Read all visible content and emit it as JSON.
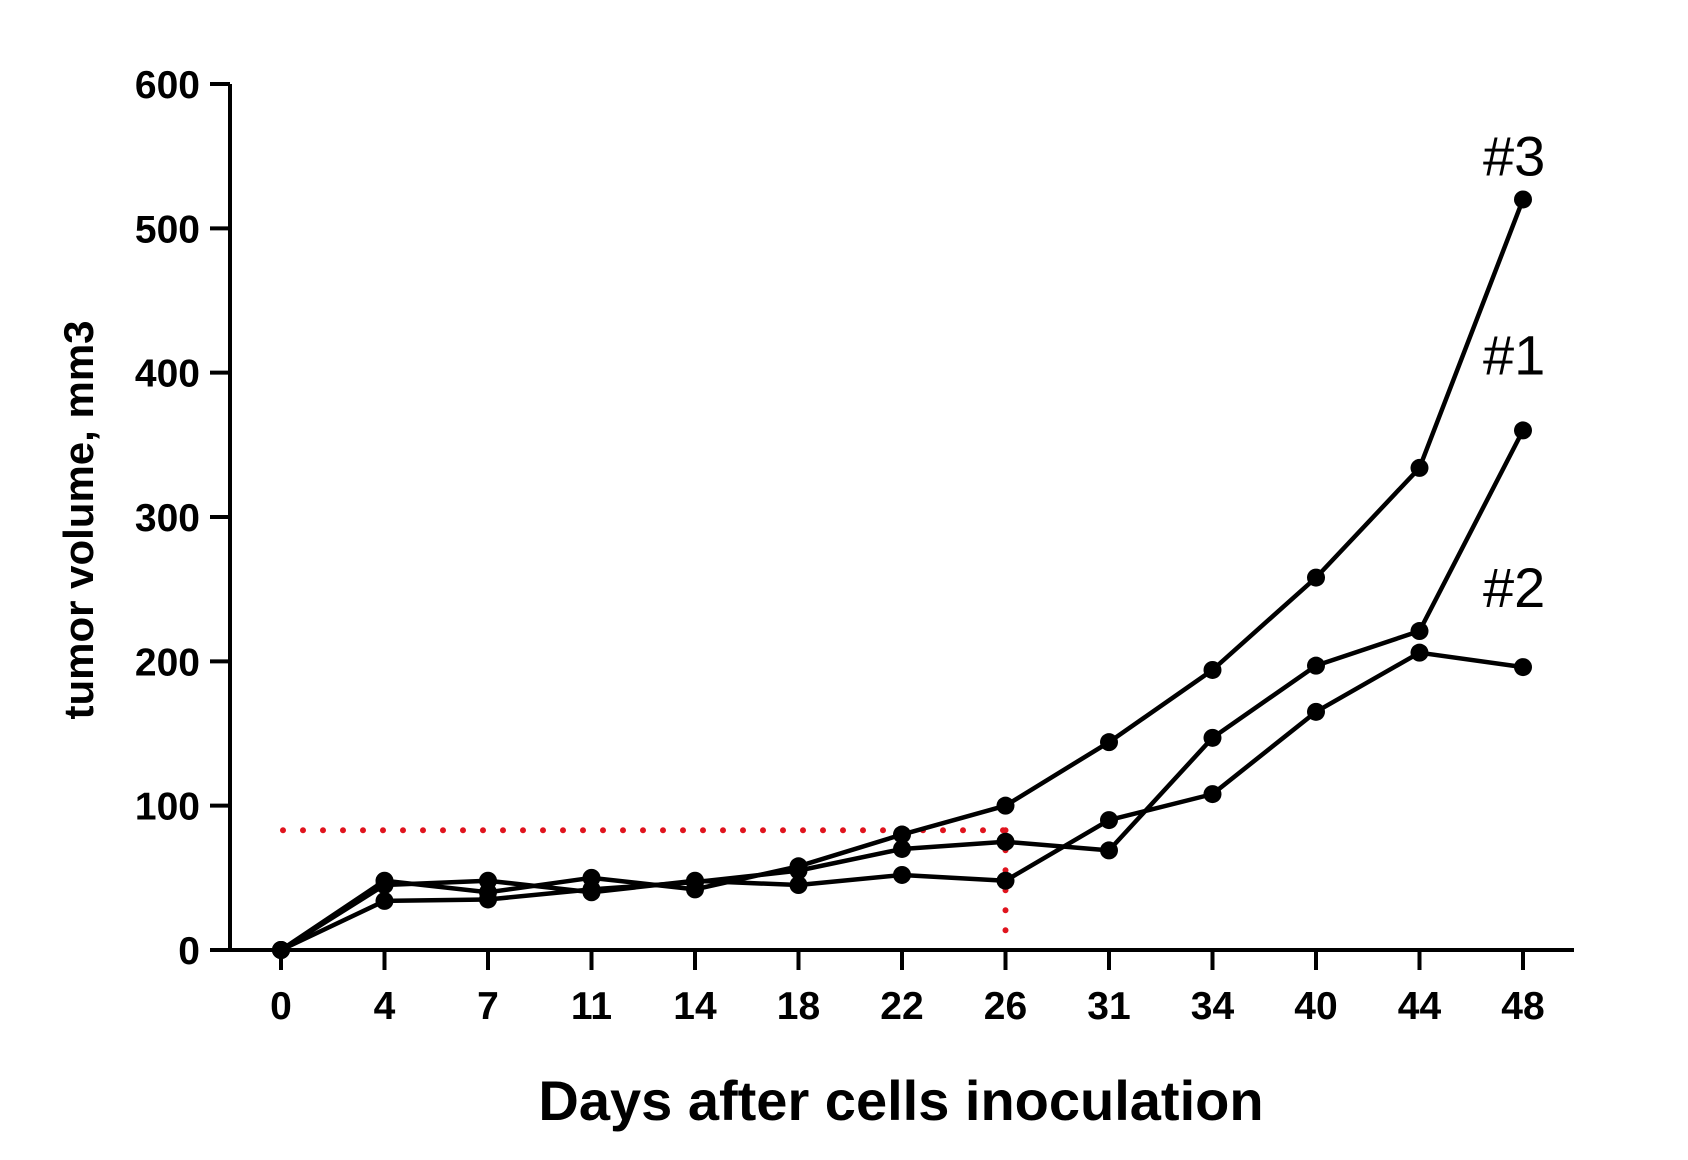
{
  "chart_data": {
    "type": "line",
    "title": "",
    "xlabel": "Days after cells inoculation",
    "ylabel": "tumor volume, mm3",
    "categories": [
      "0",
      "4",
      "7",
      "11",
      "14",
      "18",
      "22",
      "26",
      "31",
      "34",
      "40",
      "44",
      "48"
    ],
    "ylim": [
      0,
      600
    ],
    "yticks": [
      "0",
      "100",
      "200",
      "300",
      "400",
      "500",
      "600"
    ],
    "grid": false,
    "legend": "none",
    "line_color": "#000000",
    "series": [
      {
        "name": "#3",
        "values": [
          0,
          48,
          40,
          50,
          42,
          58,
          80,
          100,
          144,
          194,
          258,
          334,
          520
        ]
      },
      {
        "name": "#1",
        "values": [
          0,
          34,
          35,
          42,
          47,
          55,
          70,
          75,
          69,
          147,
          197,
          221,
          360
        ]
      },
      {
        "name": "#2",
        "values": [
          0,
          45,
          48,
          40,
          48,
          45,
          52,
          48,
          90,
          108,
          165,
          206,
          196
        ]
      }
    ],
    "reference": {
      "x": "26",
      "y": 83,
      "color": "#e0141e",
      "style": "dotted"
    }
  }
}
